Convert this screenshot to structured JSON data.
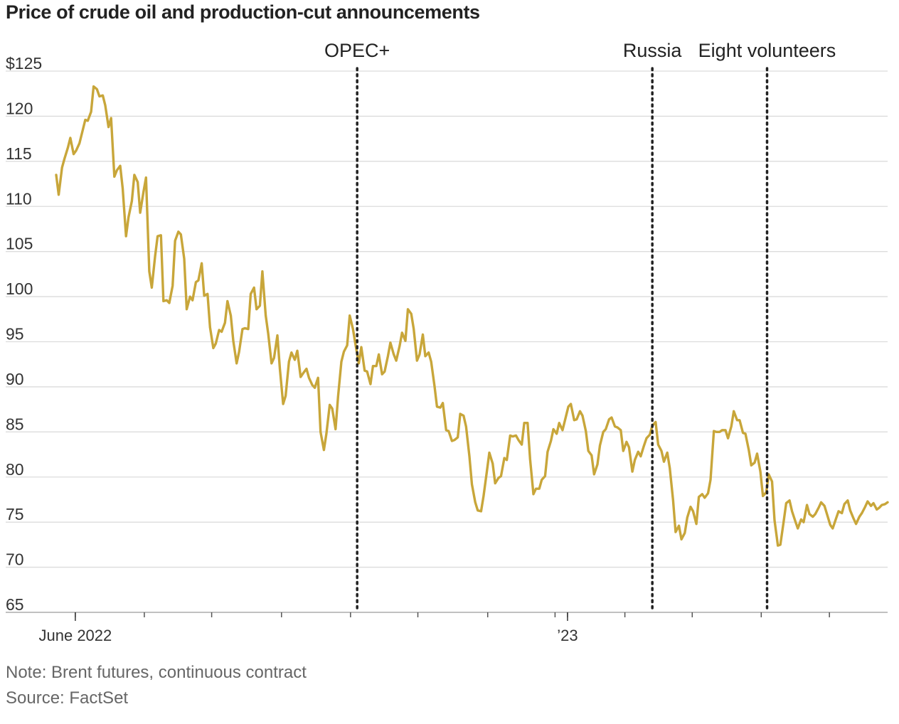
{
  "chart_data": {
    "type": "line",
    "title": "Price of crude oil and production-cut announcements",
    "note": "Note: Brent futures, continuous contract",
    "source": "Source: FactSet",
    "xlabel": "",
    "ylabel": "",
    "ylim": [
      65,
      125
    ],
    "y_ticks": [
      {
        "value": 125,
        "label": "$125"
      },
      {
        "value": 120,
        "label": "120"
      },
      {
        "value": 115,
        "label": "115"
      },
      {
        "value": 110,
        "label": "110"
      },
      {
        "value": 105,
        "label": "105"
      },
      {
        "value": 100,
        "label": "100"
      },
      {
        "value": 95,
        "label": "95"
      },
      {
        "value": 90,
        "label": "90"
      },
      {
        "value": 85,
        "label": "85"
      },
      {
        "value": 80,
        "label": "80"
      },
      {
        "value": 75,
        "label": "75"
      },
      {
        "value": 70,
        "label": "70"
      },
      {
        "value": 65,
        "label": "65"
      }
    ],
    "x_domain": [
      0,
      100
    ],
    "x_tick_labels": [
      {
        "x": 2.3,
        "label": "June 2022"
      },
      {
        "x": 61.5,
        "label": "’23"
      }
    ],
    "x_minor_ticks": [
      2.3,
      10.6,
      18.7,
      27.1,
      35.4,
      43.5,
      51.9,
      60.0,
      61.5,
      68.4,
      76.5,
      84.8,
      93.0
    ],
    "grid": "horizontal",
    "line_color": "#c8a63a",
    "annotations": [
      {
        "x": 36.2,
        "label": "OPEC+"
      },
      {
        "x": 71.7,
        "label": "Russia"
      },
      {
        "x": 85.5,
        "label": "Eight volunteers"
      }
    ],
    "series": [
      {
        "values": [
          [
            0.0,
            113.5
          ],
          [
            0.3,
            111.3
          ],
          [
            0.7,
            114.3
          ],
          [
            1.0,
            115.3
          ],
          [
            1.4,
            116.5
          ],
          [
            1.7,
            117.6
          ],
          [
            2.1,
            115.8
          ],
          [
            2.4,
            116.2
          ],
          [
            2.8,
            117.0
          ],
          [
            3.1,
            118.1
          ],
          [
            3.5,
            119.6
          ],
          [
            3.8,
            119.5
          ],
          [
            4.2,
            120.5
          ],
          [
            4.5,
            123.3
          ],
          [
            4.9,
            123.0
          ],
          [
            5.2,
            122.2
          ],
          [
            5.6,
            122.3
          ],
          [
            5.9,
            121.2
          ],
          [
            6.3,
            118.8
          ],
          [
            6.6,
            119.8
          ],
          [
            7.0,
            113.3
          ],
          [
            7.3,
            114.0
          ],
          [
            7.7,
            114.5
          ],
          [
            8.0,
            112.0
          ],
          [
            8.4,
            106.7
          ],
          [
            8.7,
            108.8
          ],
          [
            9.1,
            110.6
          ],
          [
            9.4,
            113.5
          ],
          [
            9.8,
            112.7
          ],
          [
            10.1,
            109.3
          ],
          [
            10.5,
            111.6
          ],
          [
            10.8,
            113.2
          ],
          [
            11.2,
            102.8
          ],
          [
            11.5,
            101.0
          ],
          [
            11.9,
            104.5
          ],
          [
            12.2,
            106.7
          ],
          [
            12.6,
            106.8
          ],
          [
            12.9,
            99.5
          ],
          [
            13.3,
            99.6
          ],
          [
            13.6,
            99.3
          ],
          [
            14.0,
            101.2
          ],
          [
            14.3,
            106.2
          ],
          [
            14.7,
            107.2
          ],
          [
            15.0,
            106.9
          ],
          [
            15.4,
            104.2
          ],
          [
            15.7,
            98.6
          ],
          [
            16.1,
            100.0
          ],
          [
            16.4,
            99.6
          ],
          [
            16.8,
            101.6
          ],
          [
            17.1,
            101.8
          ],
          [
            17.5,
            103.7
          ],
          [
            17.8,
            100.1
          ],
          [
            18.2,
            100.3
          ],
          [
            18.5,
            96.6
          ],
          [
            18.9,
            94.3
          ],
          [
            19.2,
            94.8
          ],
          [
            19.6,
            96.3
          ],
          [
            19.9,
            96.1
          ],
          [
            20.3,
            97.1
          ],
          [
            20.6,
            99.5
          ],
          [
            21.0,
            97.9
          ],
          [
            21.3,
            95.1
          ],
          [
            21.7,
            92.6
          ],
          [
            22.0,
            93.9
          ],
          [
            22.4,
            96.4
          ],
          [
            22.7,
            96.5
          ],
          [
            23.1,
            96.4
          ],
          [
            23.4,
            100.3
          ],
          [
            23.8,
            101.0
          ],
          [
            24.1,
            98.6
          ],
          [
            24.5,
            99.0
          ],
          [
            24.8,
            102.8
          ],
          [
            25.2,
            97.9
          ],
          [
            25.5,
            95.9
          ],
          [
            25.9,
            92.6
          ],
          [
            26.2,
            93.2
          ],
          [
            26.6,
            95.7
          ],
          [
            26.9,
            92.0
          ],
          [
            27.3,
            88.1
          ],
          [
            27.6,
            89.0
          ],
          [
            28.0,
            92.8
          ],
          [
            28.3,
            93.8
          ],
          [
            28.7,
            93.0
          ],
          [
            29.0,
            94.0
          ],
          [
            29.4,
            91.1
          ],
          [
            29.7,
            91.5
          ],
          [
            30.1,
            92.0
          ],
          [
            30.4,
            91.0
          ],
          [
            30.8,
            90.2
          ],
          [
            31.1,
            89.9
          ],
          [
            31.5,
            91.0
          ],
          [
            31.8,
            85.0
          ],
          [
            32.2,
            83.0
          ],
          [
            32.5,
            84.8
          ],
          [
            32.9,
            88.0
          ],
          [
            33.2,
            87.6
          ],
          [
            33.6,
            85.3
          ],
          [
            33.9,
            88.9
          ],
          [
            34.3,
            92.8
          ],
          [
            34.6,
            93.9
          ],
          [
            35.0,
            94.6
          ],
          [
            35.3,
            97.9
          ],
          [
            35.7,
            96.4
          ],
          [
            36.0,
            94.7
          ],
          [
            36.4,
            92.6
          ],
          [
            36.7,
            94.4
          ],
          [
            37.1,
            91.8
          ],
          [
            37.4,
            91.7
          ],
          [
            37.8,
            90.3
          ],
          [
            38.1,
            92.3
          ],
          [
            38.5,
            92.3
          ],
          [
            38.8,
            93.6
          ],
          [
            39.2,
            91.4
          ],
          [
            39.5,
            91.7
          ],
          [
            39.9,
            93.4
          ],
          [
            40.2,
            94.9
          ],
          [
            40.6,
            93.6
          ],
          [
            40.9,
            92.9
          ],
          [
            41.3,
            94.5
          ],
          [
            41.6,
            96.0
          ],
          [
            42.0,
            95.1
          ],
          [
            42.3,
            98.6
          ],
          [
            42.7,
            98.1
          ],
          [
            43.0,
            96.4
          ],
          [
            43.4,
            92.9
          ],
          [
            43.7,
            93.6
          ],
          [
            44.1,
            95.8
          ],
          [
            44.4,
            93.4
          ],
          [
            44.8,
            93.8
          ],
          [
            45.1,
            92.8
          ],
          [
            45.5,
            90.1
          ],
          [
            45.8,
            87.8
          ],
          [
            46.2,
            87.7
          ],
          [
            46.5,
            88.2
          ],
          [
            46.9,
            85.2
          ],
          [
            47.2,
            85.1
          ],
          [
            47.6,
            84.0
          ],
          [
            47.9,
            84.1
          ],
          [
            48.3,
            84.4
          ],
          [
            48.6,
            87.0
          ],
          [
            49.0,
            86.8
          ],
          [
            49.3,
            85.6
          ],
          [
            49.7,
            82.3
          ],
          [
            50.0,
            79.2
          ],
          [
            50.4,
            77.2
          ],
          [
            50.7,
            76.3
          ],
          [
            51.1,
            76.2
          ],
          [
            51.4,
            77.9
          ],
          [
            51.8,
            80.6
          ],
          [
            52.1,
            82.7
          ],
          [
            52.5,
            81.5
          ],
          [
            52.8,
            79.3
          ],
          [
            53.2,
            79.9
          ],
          [
            53.5,
            80.1
          ],
          [
            53.9,
            82.1
          ],
          [
            54.2,
            81.9
          ],
          [
            54.6,
            84.6
          ],
          [
            54.9,
            84.5
          ],
          [
            55.3,
            84.6
          ],
          [
            55.6,
            84.1
          ],
          [
            56.0,
            83.6
          ],
          [
            56.3,
            86.0
          ],
          [
            56.7,
            86.0
          ],
          [
            57.0,
            82.0
          ],
          [
            57.4,
            78.1
          ],
          [
            57.7,
            78.7
          ],
          [
            58.1,
            78.7
          ],
          [
            58.4,
            79.7
          ],
          [
            58.8,
            80.1
          ],
          [
            59.1,
            82.8
          ],
          [
            59.5,
            84.0
          ],
          [
            59.8,
            85.3
          ],
          [
            60.2,
            84.8
          ],
          [
            60.5,
            86.0
          ],
          [
            60.9,
            85.2
          ],
          [
            61.2,
            86.3
          ],
          [
            61.6,
            87.8
          ],
          [
            61.9,
            88.1
          ],
          [
            62.3,
            86.3
          ],
          [
            62.6,
            86.4
          ],
          [
            63.0,
            87.3
          ],
          [
            63.3,
            86.8
          ],
          [
            63.7,
            85.1
          ],
          [
            64.0,
            82.9
          ],
          [
            64.4,
            82.4
          ],
          [
            64.7,
            80.3
          ],
          [
            65.1,
            81.4
          ],
          [
            65.4,
            83.5
          ],
          [
            65.8,
            85.0
          ],
          [
            66.1,
            85.3
          ],
          [
            66.5,
            86.4
          ],
          [
            66.8,
            86.6
          ],
          [
            67.2,
            85.6
          ],
          [
            67.5,
            85.5
          ],
          [
            67.9,
            85.2
          ],
          [
            68.2,
            82.9
          ],
          [
            68.6,
            83.9
          ],
          [
            68.9,
            83.3
          ],
          [
            69.3,
            80.6
          ],
          [
            69.6,
            81.9
          ],
          [
            70.0,
            82.8
          ],
          [
            70.3,
            82.3
          ],
          [
            70.7,
            83.5
          ],
          [
            71.0,
            84.3
          ],
          [
            71.4,
            84.7
          ],
          [
            71.7,
            85.7
          ],
          [
            72.1,
            86.1
          ],
          [
            72.4,
            83.6
          ],
          [
            72.8,
            82.9
          ],
          [
            73.1,
            81.7
          ],
          [
            73.5,
            82.7
          ],
          [
            73.8,
            81.0
          ],
          [
            74.2,
            77.4
          ],
          [
            74.5,
            73.9
          ],
          [
            74.9,
            74.6
          ],
          [
            75.2,
            73.1
          ],
          [
            75.6,
            73.8
          ],
          [
            75.9,
            75.5
          ],
          [
            76.3,
            76.7
          ],
          [
            76.6,
            76.2
          ],
          [
            77.0,
            74.8
          ],
          [
            77.3,
            77.8
          ],
          [
            77.7,
            78.1
          ],
          [
            78.0,
            77.7
          ],
          [
            78.4,
            78.2
          ],
          [
            78.7,
            79.7
          ],
          [
            79.1,
            85.1
          ],
          [
            79.4,
            85.0
          ],
          [
            79.8,
            85.0
          ],
          [
            80.1,
            85.2
          ],
          [
            80.5,
            85.2
          ],
          [
            80.8,
            84.3
          ],
          [
            81.2,
            85.6
          ],
          [
            81.5,
            87.3
          ],
          [
            81.9,
            86.3
          ],
          [
            82.2,
            86.3
          ],
          [
            82.6,
            84.9
          ],
          [
            82.9,
            84.8
          ],
          [
            83.3,
            83.0
          ],
          [
            83.6,
            81.3
          ],
          [
            84.0,
            81.6
          ],
          [
            84.3,
            82.6
          ],
          [
            84.7,
            80.6
          ],
          [
            85.0,
            77.9
          ],
          [
            85.4,
            78.3
          ],
          [
            85.7,
            80.3
          ],
          [
            86.1,
            79.5
          ],
          [
            86.4,
            75.2
          ],
          [
            86.8,
            72.4
          ],
          [
            87.1,
            72.5
          ],
          [
            87.5,
            75.1
          ],
          [
            87.8,
            77.1
          ],
          [
            88.2,
            77.4
          ],
          [
            88.5,
            76.2
          ],
          [
            88.9,
            75.1
          ],
          [
            89.2,
            74.3
          ],
          [
            89.6,
            75.3
          ],
          [
            89.9,
            75.0
          ],
          [
            90.3,
            76.9
          ],
          [
            90.6,
            75.9
          ],
          [
            91.0,
            75.6
          ],
          [
            91.3,
            75.9
          ],
          [
            91.7,
            76.6
          ],
          [
            92.0,
            77.2
          ],
          [
            92.4,
            76.8
          ],
          [
            92.7,
            75.9
          ],
          [
            93.1,
            74.7
          ],
          [
            93.4,
            74.3
          ],
          [
            93.8,
            75.4
          ],
          [
            94.1,
            76.2
          ],
          [
            94.5,
            76.0
          ],
          [
            94.8,
            77.0
          ],
          [
            95.2,
            77.4
          ],
          [
            95.5,
            76.3
          ],
          [
            95.9,
            75.4
          ],
          [
            96.2,
            74.8
          ],
          [
            96.6,
            75.6
          ],
          [
            96.9,
            76.0
          ],
          [
            97.3,
            76.7
          ],
          [
            97.6,
            77.3
          ],
          [
            98.0,
            76.8
          ],
          [
            98.3,
            77.1
          ],
          [
            98.7,
            76.4
          ],
          [
            99.0,
            76.6
          ],
          [
            99.3,
            76.9
          ],
          [
            99.7,
            77.0
          ],
          [
            100.0,
            77.2
          ]
        ]
      }
    ]
  }
}
